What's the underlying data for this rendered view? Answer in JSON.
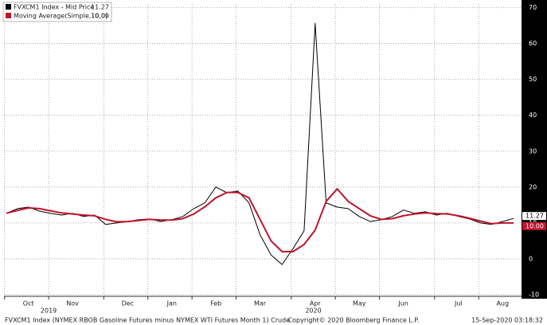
{
  "chart_data": {
    "type": "line",
    "categories": [
      null,
      null,
      "Oct",
      null,
      null,
      null,
      "Nov",
      null,
      null,
      null,
      null,
      "Dec",
      null,
      null,
      null,
      "Jan",
      null,
      null,
      null,
      "Feb",
      null,
      null,
      null,
      "Mar",
      null,
      null,
      null,
      null,
      "Apr",
      null,
      null,
      null,
      "May",
      null,
      null,
      null,
      "Jun",
      null,
      null,
      null,
      null,
      "Jul",
      null,
      null,
      null,
      "Aug",
      null
    ],
    "year_labels": [
      {
        "label": "2019",
        "at": 6
      },
      {
        "label": "2020",
        "at": 30
      }
    ],
    "series": [
      {
        "name": "FVXCM1 Index - Mid Price",
        "last_label": "11.27",
        "color": "#000000",
        "values": [
          12.7,
          14,
          14.4,
          13.3,
          12.7,
          12.2,
          12.7,
          11.8,
          12.2,
          9.6,
          10,
          10.4,
          10.9,
          11.1,
          10.4,
          10.9,
          11.8,
          14,
          15.6,
          20,
          18.4,
          18.9,
          15.6,
          6.7,
          1.1,
          -1.6,
          2.9,
          7.8,
          65.6,
          15.6,
          14.4,
          14,
          11.8,
          10.4,
          10.9,
          11.8,
          13.6,
          12.7,
          13.1,
          12.2,
          12.7,
          11.8,
          11.1,
          10,
          9.6,
          10.4,
          11.27
        ]
      },
      {
        "name": "Moving Average(Simple,10,0)",
        "last_label": "10.00",
        "color": "#c0142c",
        "values": [
          12.7,
          13.5,
          14.2,
          14,
          13.4,
          12.8,
          12.5,
          12.2,
          12,
          11,
          10.3,
          10.4,
          10.7,
          11,
          10.8,
          10.8,
          11.2,
          12.5,
          14.5,
          17,
          18.5,
          18.5,
          17,
          11,
          5,
          2,
          2,
          4,
          8,
          16,
          19.5,
          16,
          14,
          12,
          11,
          11.2,
          12,
          12.5,
          12.8,
          12.6,
          12.5,
          12,
          11.3,
          10.5,
          9.8,
          10,
          10
        ]
      }
    ],
    "ylim": [
      -10,
      71
    ],
    "yticks": [
      70,
      60,
      50,
      40,
      30,
      20,
      10,
      0,
      -10
    ],
    "grid": true,
    "footer": {
      "left": "FVXCM1 Index (NYMEX RBOB Gasoline Futures minus NYMEX WTI Futures Month 1) Crude",
      "center": "Copyright© 2020 Bloomberg Finance L.P.",
      "right": "15-Sep-2020 03:18:32"
    }
  }
}
